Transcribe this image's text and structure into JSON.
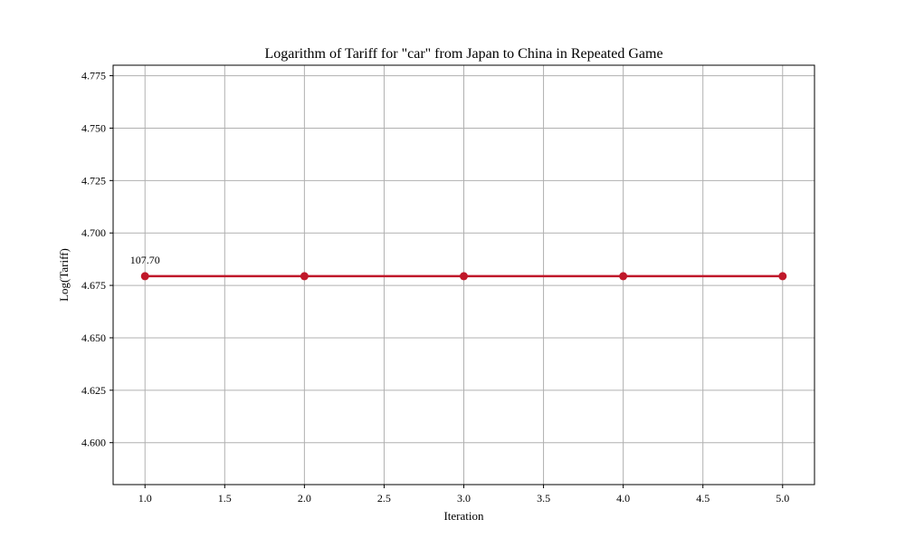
{
  "chart_data": {
    "type": "line",
    "title": "Logarithm of Tariff for \"car\" from Japan to China in Repeated Game",
    "xlabel": "Iteration",
    "ylabel": "Log(Tariff)",
    "xlim": [
      0.8,
      5.2
    ],
    "ylim": [
      4.58,
      4.78
    ],
    "xticks": [
      1.0,
      1.5,
      2.0,
      2.5,
      3.0,
      3.5,
      4.0,
      4.5,
      5.0
    ],
    "xtick_labels": [
      "1.0",
      "1.5",
      "2.0",
      "2.5",
      "3.0",
      "3.5",
      "4.0",
      "4.5",
      "5.0"
    ],
    "yticks": [
      4.6,
      4.625,
      4.65,
      4.675,
      4.7,
      4.725,
      4.75,
      4.775
    ],
    "ytick_labels": [
      "4.600",
      "4.625",
      "4.650",
      "4.675",
      "4.700",
      "4.725",
      "4.750",
      "4.775"
    ],
    "grid": true,
    "series": [
      {
        "color": "#c0182a",
        "marker": "circle",
        "x": [
          1,
          2,
          3,
          4,
          5
        ],
        "y": [
          4.6794,
          4.6794,
          4.6794,
          4.6794,
          4.6794
        ]
      }
    ],
    "annotations": [
      {
        "text": "107.70",
        "x": 1,
        "y": 4.6794
      }
    ]
  }
}
